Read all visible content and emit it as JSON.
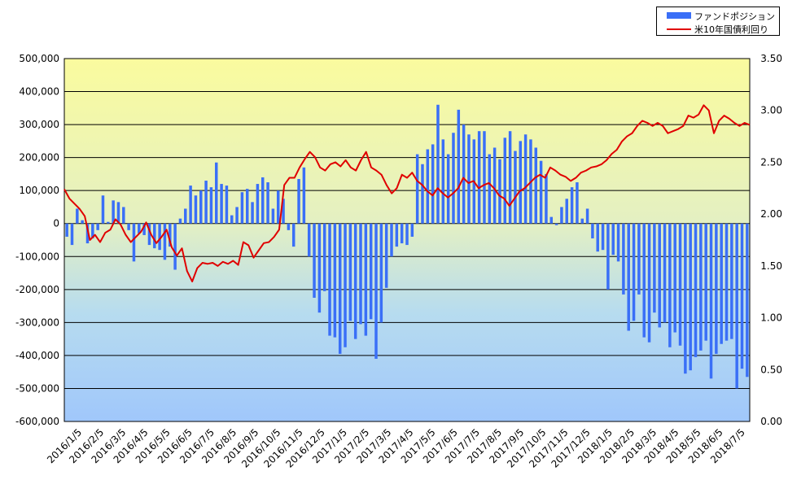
{
  "chart_data": {
    "type": "bar+line",
    "title": "",
    "xlabel": "",
    "ylabel": "",
    "ylim": [
      -600000,
      500000
    ],
    "y2lim": [
      0.0,
      3.5
    ],
    "y_ticks": [
      "500,000",
      "400,000",
      "300,000",
      "200,000",
      "100,000",
      "0",
      "-100,000",
      "-200,000",
      "-300,000",
      "-400,000",
      "-500,000",
      "-600,000"
    ],
    "y2_ticks": [
      "3.50",
      "3.00",
      "2.50",
      "2.00",
      "1.50",
      "1.00",
      "0.50",
      "0.00"
    ],
    "x_ticks": [
      "2016/1/5",
      "2016/2/5",
      "2016/3/5",
      "2016/4/5",
      "2016/5/5",
      "2016/6/5",
      "2016/7/5",
      "2016/8/5",
      "2016/9/5",
      "2016/10/5",
      "2016/11/5",
      "2016/12/5",
      "2017/1/5",
      "2017/2/5",
      "2017/3/5",
      "2017/4/5",
      "2017/5/5",
      "2017/6/5",
      "2017/7/5",
      "2017/8/5",
      "2017/9/5",
      "2017/10/5",
      "2017/11/5",
      "2017/12/5",
      "2018/1/5",
      "2018/2/5",
      "2018/3/5",
      "2018/4/5",
      "2018/5/5",
      "2018/6/5",
      "2018/7/5"
    ],
    "legend_position": "top-right",
    "series": [
      {
        "name": "ファンドポジション",
        "type": "bar",
        "axis": "left",
        "color": "#3a6ff7",
        "values": [
          -40000,
          -65000,
          45000,
          10000,
          -60000,
          -45000,
          -20000,
          85000,
          5000,
          70000,
          65000,
          50000,
          -20000,
          -115000,
          -30000,
          -35000,
          -65000,
          -75000,
          -80000,
          -110000,
          -70000,
          -140000,
          15000,
          45000,
          115000,
          85000,
          100000,
          130000,
          110000,
          185000,
          120000,
          115000,
          25000,
          50000,
          95000,
          105000,
          65000,
          120000,
          140000,
          125000,
          45000,
          100000,
          75000,
          -20000,
          -70000,
          135000,
          170000,
          -100000,
          -225000,
          -270000,
          -205000,
          -340000,
          -345000,
          -395000,
          -375000,
          -295000,
          -350000,
          -305000,
          -340000,
          -290000,
          -410000,
          -300000,
          -195000,
          -100000,
          -70000,
          -60000,
          -65000,
          -40000,
          210000,
          180000,
          225000,
          240000,
          360000,
          255000,
          210000,
          275000,
          345000,
          300000,
          270000,
          255000,
          280000,
          280000,
          210000,
          230000,
          195000,
          260000,
          280000,
          220000,
          250000,
          270000,
          255000,
          230000,
          190000,
          150000,
          20000,
          -5000,
          50000,
          75000,
          110000,
          125000,
          15000,
          45000,
          -45000,
          -85000,
          -80000,
          -200000,
          -95000,
          -115000,
          -215000,
          -325000,
          -295000,
          -215000,
          -345000,
          -360000,
          -270000,
          -315000,
          -300000,
          -375000,
          -330000,
          -370000,
          -455000,
          -445000,
          -405000,
          -385000,
          -355000,
          -470000,
          -395000,
          -365000,
          -355000,
          -350000,
          -500000,
          -440000,
          -465000
        ]
      },
      {
        "name": "米10年国債利回り",
        "type": "line",
        "axis": "right",
        "color": "#e00000",
        "values": [
          2.24,
          2.15,
          2.1,
          2.05,
          1.98,
          1.75,
          1.8,
          1.73,
          1.82,
          1.85,
          1.95,
          1.9,
          1.8,
          1.73,
          1.78,
          1.83,
          1.92,
          1.8,
          1.72,
          1.78,
          1.85,
          1.68,
          1.6,
          1.67,
          1.45,
          1.35,
          1.48,
          1.53,
          1.52,
          1.53,
          1.5,
          1.54,
          1.52,
          1.55,
          1.51,
          1.73,
          1.7,
          1.58,
          1.65,
          1.72,
          1.73,
          1.78,
          1.85,
          2.28,
          2.35,
          2.35,
          2.45,
          2.53,
          2.6,
          2.55,
          2.45,
          2.42,
          2.48,
          2.5,
          2.46,
          2.52,
          2.45,
          2.42,
          2.52,
          2.6,
          2.45,
          2.42,
          2.38,
          2.28,
          2.2,
          2.25,
          2.38,
          2.35,
          2.4,
          2.32,
          2.28,
          2.22,
          2.18,
          2.25,
          2.2,
          2.16,
          2.2,
          2.25,
          2.35,
          2.3,
          2.32,
          2.25,
          2.28,
          2.3,
          2.25,
          2.18,
          2.15,
          2.08,
          2.15,
          2.22,
          2.25,
          2.3,
          2.35,
          2.38,
          2.35,
          2.45,
          2.42,
          2.38,
          2.36,
          2.32,
          2.35,
          2.4,
          2.42,
          2.45,
          2.46,
          2.48,
          2.52,
          2.58,
          2.62,
          2.7,
          2.75,
          2.78,
          2.85,
          2.9,
          2.88,
          2.85,
          2.88,
          2.85,
          2.78,
          2.8,
          2.82,
          2.85,
          2.95,
          2.93,
          2.96,
          3.05,
          3.0,
          2.78,
          2.9,
          2.95,
          2.92,
          2.88,
          2.85,
          2.88,
          2.86
        ]
      }
    ]
  }
}
